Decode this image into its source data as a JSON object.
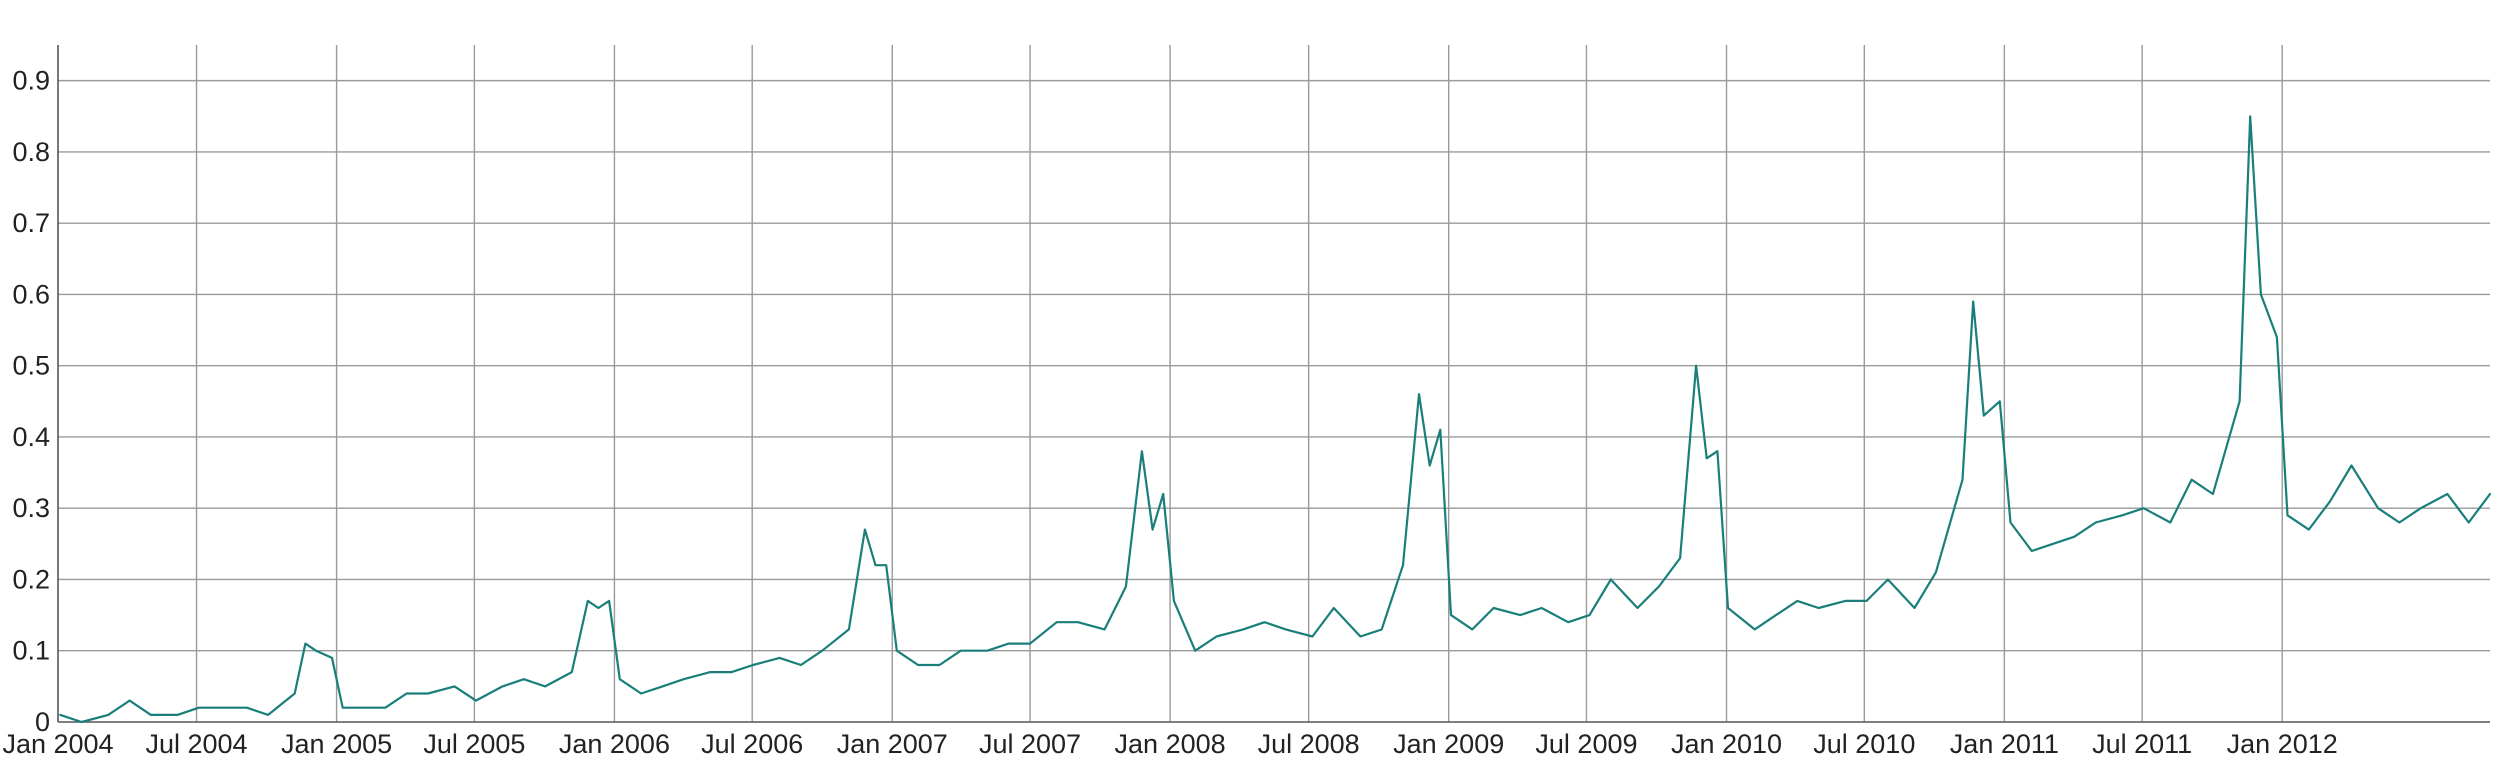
{
  "chart_data": {
    "type": "line",
    "title": "",
    "xlabel": "",
    "ylabel": "",
    "xlim": [
      "2004-01-01",
      "2012-09-30"
    ],
    "ylim": [
      0,
      0.95
    ],
    "grid": true,
    "x_tick_labels": [
      "Jan 2004",
      "Jul 2004",
      "Jan 2005",
      "Jul 2005",
      "Jan 2006",
      "Jul 2006",
      "Jan 2007",
      "Jul 2007",
      "Jan 2008",
      "Jul 2008",
      "Jan 2009",
      "Jul 2009",
      "Jan 2010",
      "Jul 2010",
      "Jan 2011",
      "Jul 2011",
      "Jan 2012"
    ],
    "x_tick_dates": [
      "2004-01-01",
      "2004-07-01",
      "2005-01-01",
      "2005-07-01",
      "2006-01-01",
      "2006-07-01",
      "2007-01-01",
      "2007-07-01",
      "2008-01-01",
      "2008-07-01",
      "2009-01-01",
      "2009-07-01",
      "2010-01-01",
      "2010-07-01",
      "2011-01-01",
      "2011-07-01",
      "2012-01-01"
    ],
    "y_tick_labels": [
      "0",
      "0.1",
      "0.2",
      "0.3",
      "0.4",
      "0.5",
      "0.6",
      "0.7",
      "0.8",
      "0.9"
    ],
    "y_ticks": [
      0,
      0.1,
      0.2,
      0.3,
      0.4,
      0.5,
      0.6,
      0.7,
      0.8,
      0.9
    ],
    "series": [
      {
        "color": "#1a7f7a",
        "points": [
          [
            "2004-01-04",
            0.01
          ],
          [
            "2004-02-01",
            0.0
          ],
          [
            "2004-03-07",
            0.01
          ],
          [
            "2004-04-04",
            0.03
          ],
          [
            "2004-05-02",
            0.01
          ],
          [
            "2004-06-06",
            0.01
          ],
          [
            "2004-07-04",
            0.02
          ],
          [
            "2004-08-01",
            0.02
          ],
          [
            "2004-09-05",
            0.02
          ],
          [
            "2004-10-03",
            0.01
          ],
          [
            "2004-11-07",
            0.04
          ],
          [
            "2004-11-21",
            0.11
          ],
          [
            "2004-12-05",
            0.1
          ],
          [
            "2004-12-26",
            0.09
          ],
          [
            "2005-01-09",
            0.02
          ],
          [
            "2005-02-06",
            0.02
          ],
          [
            "2005-03-06",
            0.02
          ],
          [
            "2005-04-03",
            0.04
          ],
          [
            "2005-05-01",
            0.04
          ],
          [
            "2005-06-05",
            0.05
          ],
          [
            "2005-07-03",
            0.03
          ],
          [
            "2005-08-07",
            0.05
          ],
          [
            "2005-09-04",
            0.06
          ],
          [
            "2005-10-02",
            0.05
          ],
          [
            "2005-11-06",
            0.07
          ],
          [
            "2005-11-27",
            0.17
          ],
          [
            "2005-12-11",
            0.16
          ],
          [
            "2005-12-25",
            0.17
          ],
          [
            "2006-01-08",
            0.06
          ],
          [
            "2006-02-05",
            0.04
          ],
          [
            "2006-03-05",
            0.05
          ],
          [
            "2006-04-02",
            0.06
          ],
          [
            "2006-05-07",
            0.07
          ],
          [
            "2006-06-04",
            0.07
          ],
          [
            "2006-07-02",
            0.08
          ],
          [
            "2006-08-06",
            0.09
          ],
          [
            "2006-09-03",
            0.08
          ],
          [
            "2006-10-01",
            0.1
          ],
          [
            "2006-11-05",
            0.13
          ],
          [
            "2006-11-26",
            0.27
          ],
          [
            "2006-12-10",
            0.22
          ],
          [
            "2006-12-24",
            0.22
          ],
          [
            "2007-01-07",
            0.1
          ],
          [
            "2007-02-04",
            0.08
          ],
          [
            "2007-03-04",
            0.08
          ],
          [
            "2007-04-01",
            0.1
          ],
          [
            "2007-05-06",
            0.1
          ],
          [
            "2007-06-03",
            0.11
          ],
          [
            "2007-07-01",
            0.11
          ],
          [
            "2007-08-05",
            0.14
          ],
          [
            "2007-09-02",
            0.14
          ],
          [
            "2007-10-07",
            0.13
          ],
          [
            "2007-11-04",
            0.19
          ],
          [
            "2007-11-25",
            0.38
          ],
          [
            "2007-12-09",
            0.27
          ],
          [
            "2007-12-23",
            0.32
          ],
          [
            "2008-01-06",
            0.17
          ],
          [
            "2008-02-03",
            0.1
          ],
          [
            "2008-03-02",
            0.12
          ],
          [
            "2008-04-06",
            0.13
          ],
          [
            "2008-05-04",
            0.14
          ],
          [
            "2008-06-01",
            0.13
          ],
          [
            "2008-07-06",
            0.12
          ],
          [
            "2008-08-03",
            0.16
          ],
          [
            "2008-09-07",
            0.12
          ],
          [
            "2008-10-05",
            0.13
          ],
          [
            "2008-11-02",
            0.22
          ],
          [
            "2008-11-23",
            0.46
          ],
          [
            "2008-12-07",
            0.36
          ],
          [
            "2008-12-21",
            0.41
          ],
          [
            "2009-01-04",
            0.15
          ],
          [
            "2009-02-01",
            0.13
          ],
          [
            "2009-03-01",
            0.16
          ],
          [
            "2009-04-05",
            0.15
          ],
          [
            "2009-05-03",
            0.16
          ],
          [
            "2009-06-07",
            0.14
          ],
          [
            "2009-07-05",
            0.15
          ],
          [
            "2009-08-02",
            0.2
          ],
          [
            "2009-09-06",
            0.16
          ],
          [
            "2009-10-04",
            0.19
          ],
          [
            "2009-11-01",
            0.23
          ],
          [
            "2009-11-22",
            0.5
          ],
          [
            "2009-12-06",
            0.37
          ],
          [
            "2009-12-20",
            0.38
          ],
          [
            "2010-01-03",
            0.16
          ],
          [
            "2010-02-07",
            0.13
          ],
          [
            "2010-03-07",
            0.15
          ],
          [
            "2010-04-04",
            0.17
          ],
          [
            "2010-05-02",
            0.16
          ],
          [
            "2010-06-06",
            0.17
          ],
          [
            "2010-07-04",
            0.17
          ],
          [
            "2010-08-01",
            0.2
          ],
          [
            "2010-09-05",
            0.16
          ],
          [
            "2010-10-03",
            0.21
          ],
          [
            "2010-11-07",
            0.34
          ],
          [
            "2010-11-21",
            0.59
          ],
          [
            "2010-12-05",
            0.43
          ],
          [
            "2010-12-26",
            0.45
          ],
          [
            "2011-01-09",
            0.28
          ],
          [
            "2011-02-06",
            0.24
          ],
          [
            "2011-03-06",
            0.25
          ],
          [
            "2011-04-03",
            0.26
          ],
          [
            "2011-05-01",
            0.28
          ],
          [
            "2011-06-05",
            0.29
          ],
          [
            "2011-07-03",
            0.3
          ],
          [
            "2011-08-07",
            0.28
          ],
          [
            "2011-09-04",
            0.34
          ],
          [
            "2011-10-02",
            0.32
          ],
          [
            "2011-11-06",
            0.45
          ],
          [
            "2011-11-20",
            0.85
          ],
          [
            "2011-12-04",
            0.6
          ],
          [
            "2011-12-25",
            0.54
          ],
          [
            "2012-01-08",
            0.29
          ],
          [
            "2012-02-05",
            0.27
          ],
          [
            "2012-03-04",
            0.31
          ],
          [
            "2012-04-01",
            0.36
          ],
          [
            "2012-05-06",
            0.3
          ],
          [
            "2012-06-03",
            0.28
          ],
          [
            "2012-07-01",
            0.3
          ],
          [
            "2012-08-05",
            0.32
          ],
          [
            "2012-09-02",
            0.28
          ],
          [
            "2012-09-30",
            0.32
          ]
        ]
      }
    ]
  }
}
